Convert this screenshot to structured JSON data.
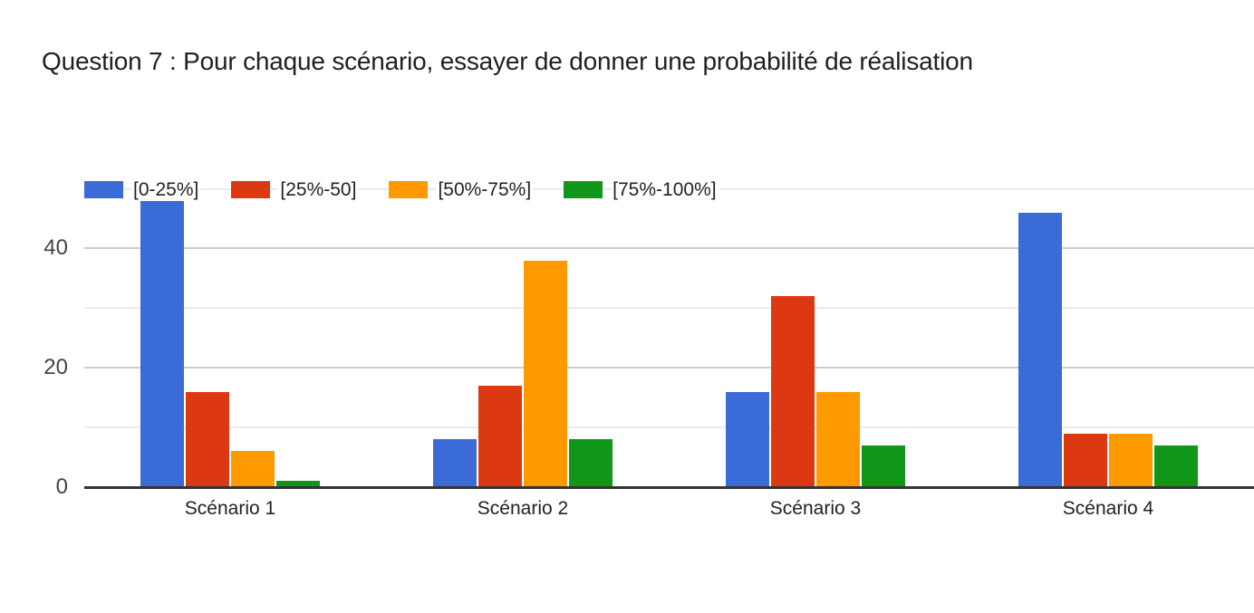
{
  "title": "Question 7 : Pour chaque scénario, essayer de donner une probabilité de réalisation",
  "chart_data": {
    "type": "bar",
    "title": "Question 7 : Pour chaque scénario, essayer de donner une probabilité de réalisation",
    "categories": [
      "Scénario 1",
      "Scénario 2",
      "Scénario 3",
      "Scénario 4"
    ],
    "series": [
      {
        "name": "[0-25%]",
        "color": "#3b6bd6",
        "values": [
          48,
          8,
          16,
          46
        ]
      },
      {
        "name": "[25%-50]",
        "color": "#dc3912",
        "values": [
          16,
          17,
          32,
          9
        ]
      },
      {
        "name": "[50%-75%]",
        "color": "#ff9900",
        "values": [
          6,
          38,
          16,
          9
        ]
      },
      {
        "name": "[75%-100%]",
        "color": "#109618",
        "values": [
          1,
          8,
          7,
          7
        ]
      }
    ],
    "xlabel": "",
    "ylabel": "",
    "ylim": [
      0,
      52.8
    ],
    "ytick_labels": [
      0,
      20,
      40
    ],
    "gridline_values": [
      10,
      20,
      30,
      40,
      50
    ],
    "major_gridline_values": [
      20,
      40
    ],
    "grid": true,
    "legend_position": "top-left",
    "colors": {
      "major_gridline": "#cccccc",
      "minor_gridline": "#ebebeb",
      "axis_baseline": "#333333",
      "tick_text": "#444444",
      "label_text": "#222222",
      "title_text": "#202124"
    }
  }
}
